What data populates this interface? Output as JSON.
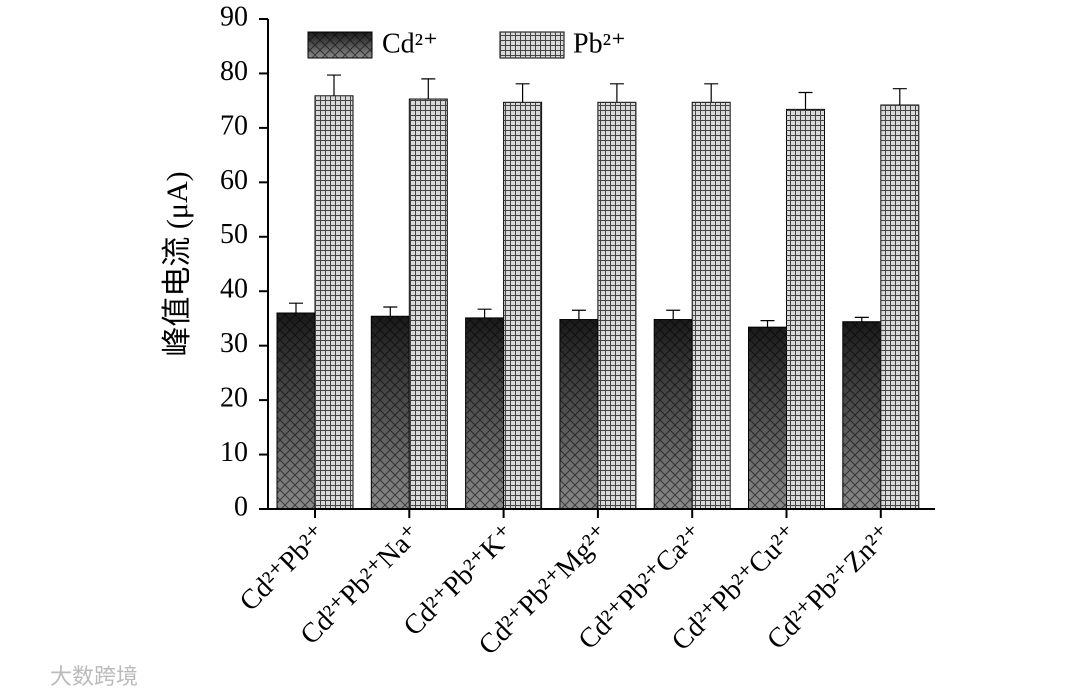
{
  "chart_data": {
    "type": "bar",
    "ylabel": "峰值电流 (μA)",
    "categories": [
      "Cd²⁺Pb²⁺",
      "Cd²⁺Pb²⁺Na⁺",
      "Cd²⁺Pb²⁺K⁺",
      "Cd²⁺Pb²⁺Mg²⁺",
      "Cd²⁺Pb²⁺Ca²⁺",
      "Cd²⁺Pb²⁺Cu²⁺",
      "Cd²⁺Pb²⁺Zn²⁺"
    ],
    "series": [
      {
        "name": "Cd²⁺",
        "color": "#1a1a1a",
        "values": [
          36.0,
          35.4,
          35.1,
          34.8,
          34.8,
          33.4,
          34.4
        ],
        "errors": [
          1.8,
          1.7,
          1.6,
          1.7,
          1.7,
          1.2,
          0.8
        ]
      },
      {
        "name": "Pb²⁺",
        "color": "#d9d9d9",
        "values": [
          75.9,
          75.3,
          74.7,
          74.7,
          74.7,
          73.4,
          74.2
        ],
        "errors": [
          3.8,
          3.7,
          3.4,
          3.4,
          3.4,
          3.1,
          3.0
        ]
      }
    ],
    "ylim": [
      0,
      90
    ],
    "yticks": [
      0,
      10,
      20,
      30,
      40,
      50,
      60,
      70,
      80,
      90
    ],
    "legend": "top",
    "watermark": "大数跨境"
  }
}
